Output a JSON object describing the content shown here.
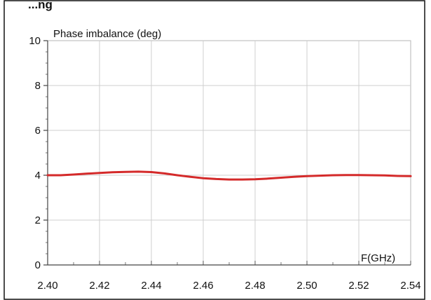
{
  "chart_data": {
    "type": "line",
    "title": "...ng",
    "ylabel": "Phase imbalance (deg)",
    "xlabel": "F(GHz)",
    "xlim": [
      2.4,
      2.54
    ],
    "ylim": [
      0,
      10
    ],
    "x_ticks": [
      "2.40",
      "2.42",
      "2.44",
      "2.46",
      "2.48",
      "2.50",
      "2.52",
      "2.54"
    ],
    "y_ticks": [
      "0",
      "2",
      "4",
      "6",
      "8",
      "10"
    ],
    "grid": true,
    "series": [
      {
        "color": "#d42a2a",
        "x": [
          2.4,
          2.405,
          2.41,
          2.415,
          2.42,
          2.425,
          2.43,
          2.435,
          2.44,
          2.445,
          2.45,
          2.455,
          2.46,
          2.465,
          2.47,
          2.475,
          2.48,
          2.485,
          2.49,
          2.495,
          2.5,
          2.505,
          2.51,
          2.515,
          2.52,
          2.525,
          2.53,
          2.535,
          2.54
        ],
        "y": [
          4.0,
          4.0,
          4.03,
          4.07,
          4.1,
          4.13,
          4.15,
          4.16,
          4.14,
          4.08,
          4.0,
          3.93,
          3.87,
          3.83,
          3.81,
          3.81,
          3.82,
          3.85,
          3.89,
          3.93,
          3.96,
          3.98,
          4.0,
          4.01,
          4.01,
          4.0,
          3.99,
          3.97,
          3.96
        ]
      }
    ]
  }
}
